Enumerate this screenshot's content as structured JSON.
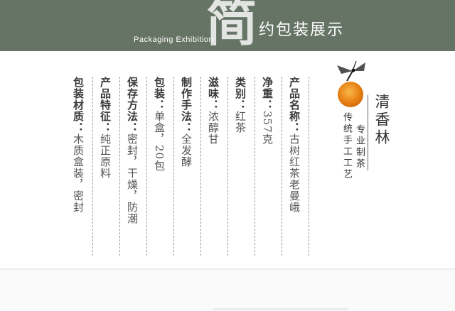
{
  "header": {
    "big_char": "简",
    "title": "约包装展示",
    "english": "Packaging Exhibition"
  },
  "logo": {
    "name": "清香林",
    "slogan_1": "专业制茶",
    "slogan_2": "传统手工工艺"
  },
  "specs": [
    {
      "label": "产品名称：",
      "value": "古树红茶老曼峨"
    },
    {
      "label": "净重：",
      "value": "357克"
    },
    {
      "label": "类别：",
      "value": "红茶"
    },
    {
      "label": "滋味：",
      "value": "浓醇甘"
    },
    {
      "label": "制作手法：",
      "value": "全发酵"
    },
    {
      "label": "包装：",
      "value": "单盒，20包"
    },
    {
      "label": "保存方法：",
      "value": "密封，干燥，防潮"
    },
    {
      "label": "产品特征：",
      "value": "纯正原料"
    },
    {
      "label": "包装材质：",
      "value": "木质盒装，密封"
    }
  ],
  "colors": {
    "banner": "#667466",
    "sun": "#e57c11"
  }
}
